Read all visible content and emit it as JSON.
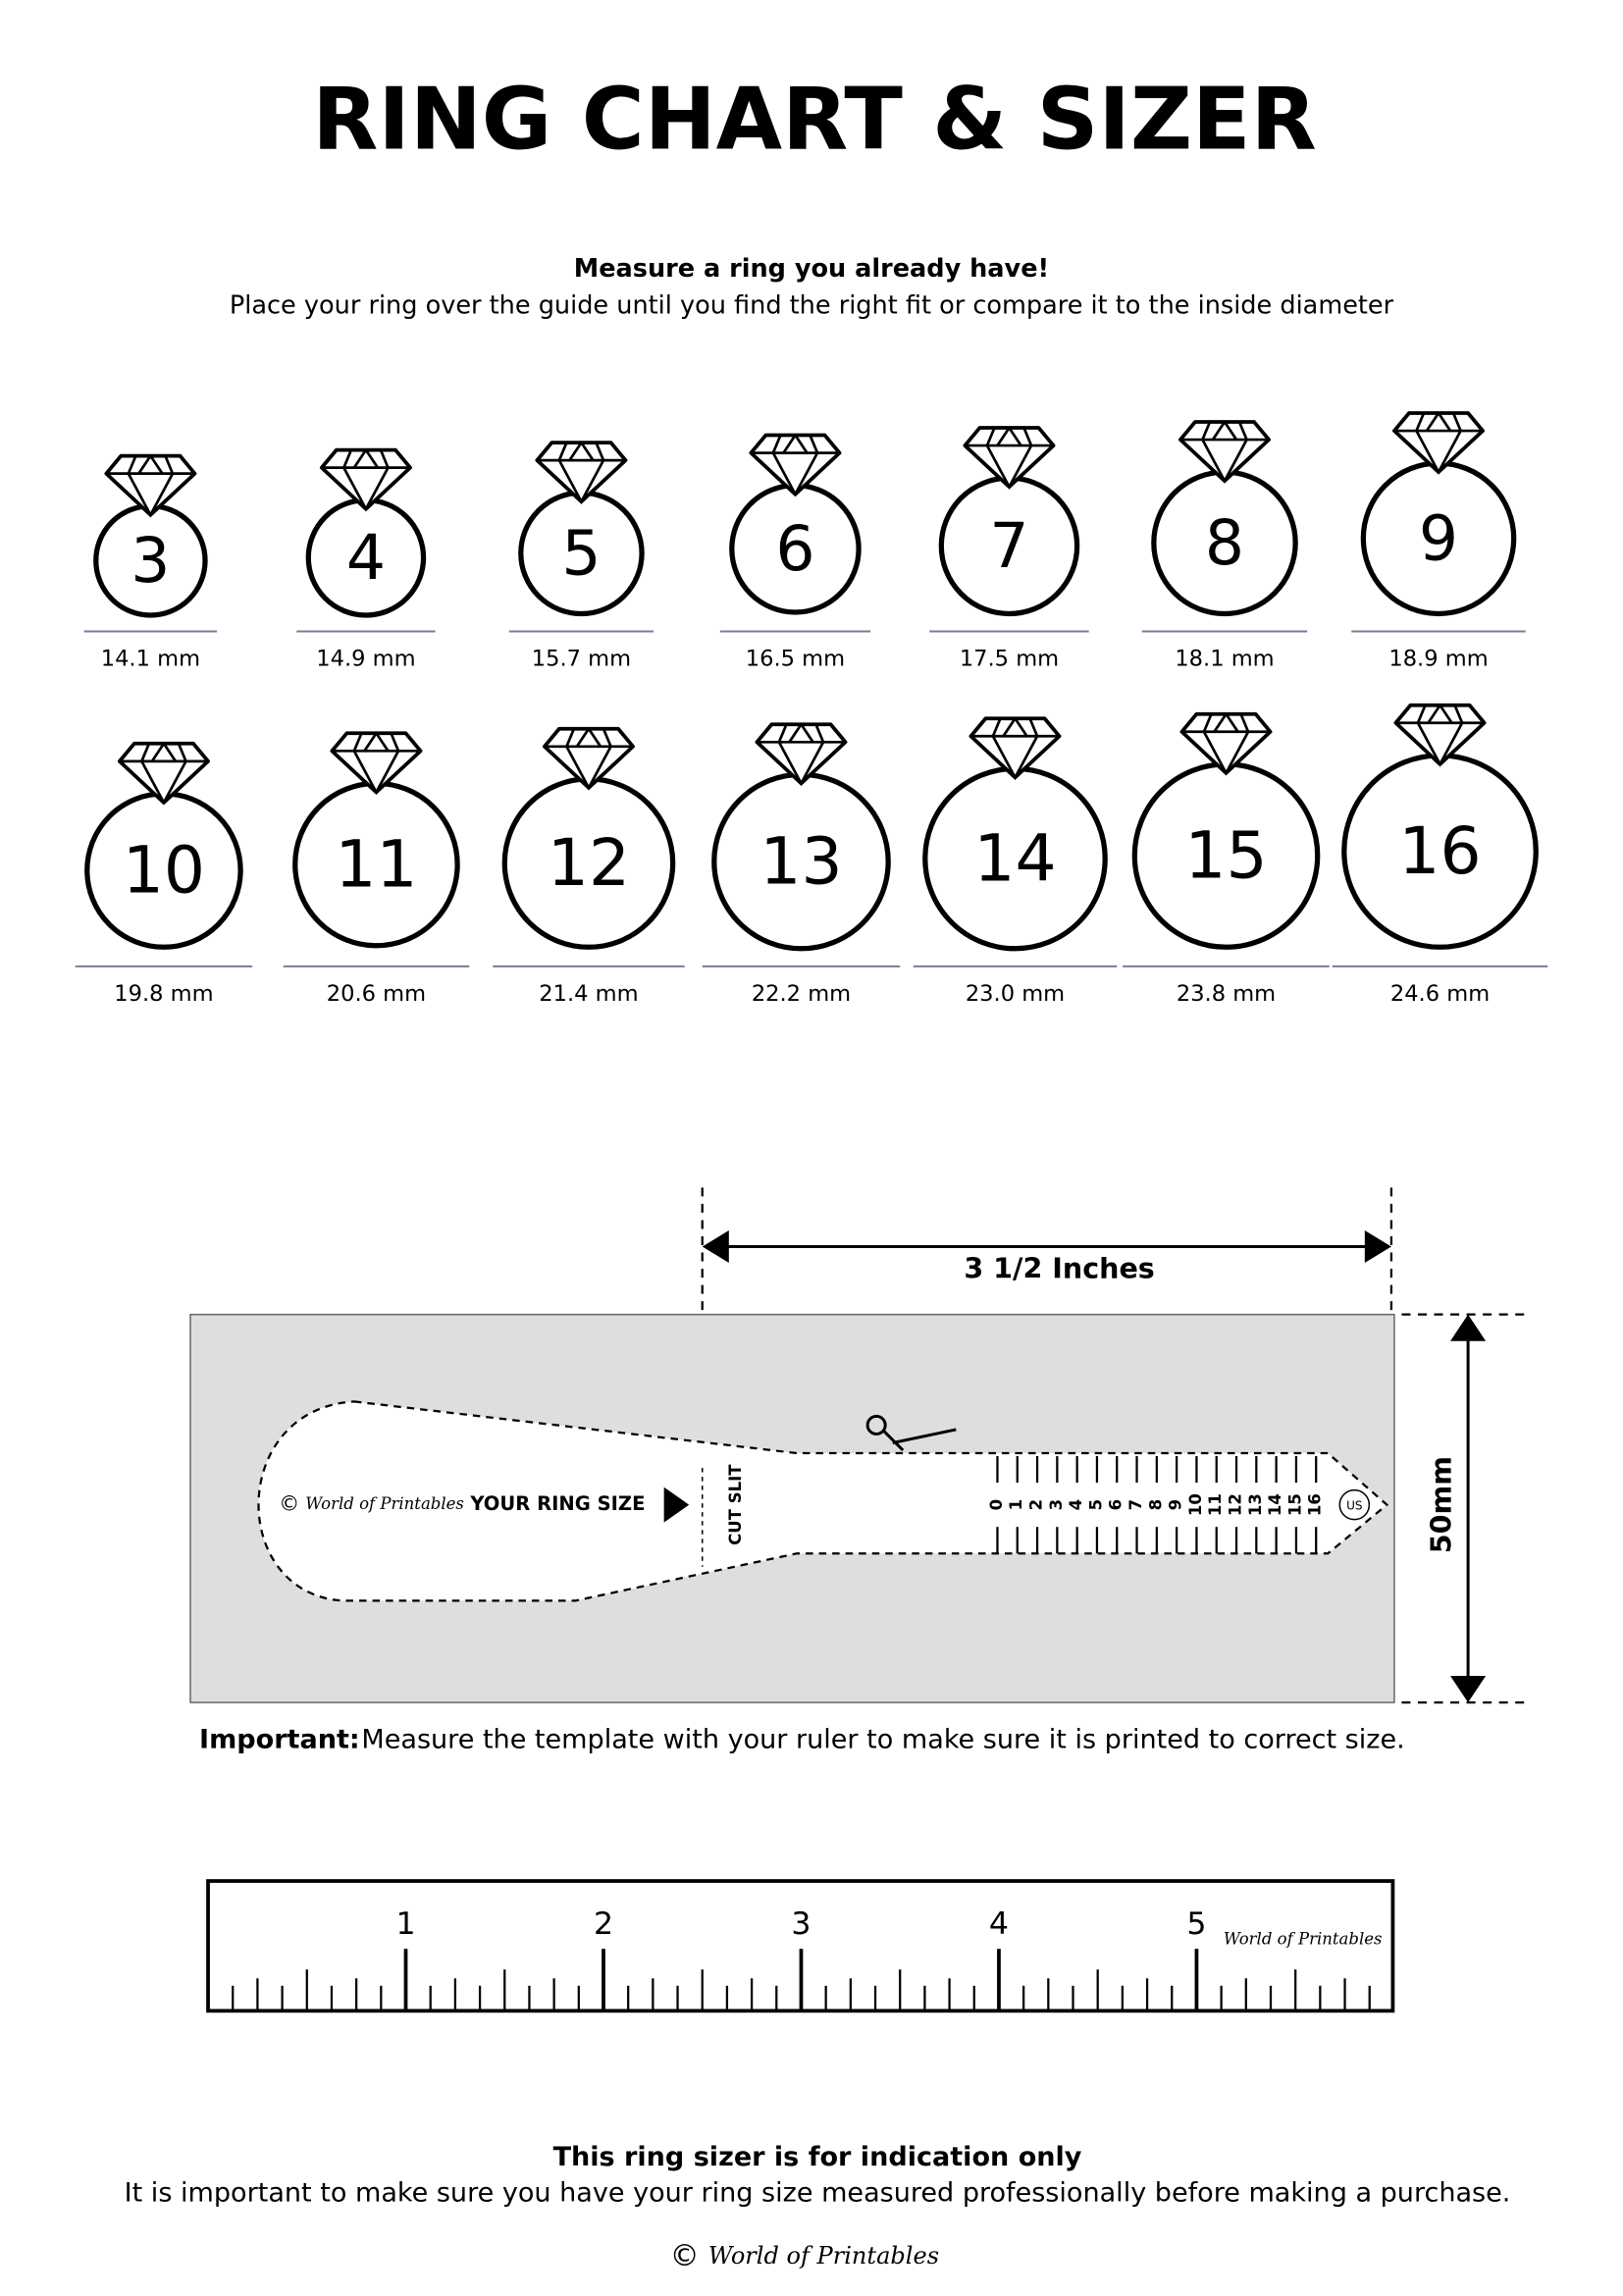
{
  "title": "RING CHART & SIZER",
  "intro": {
    "heading": "Measure a ring you already have!",
    "text": "Place your ring over the guide until you find the right fit or compare it to the inside diameter"
  },
  "rings": [
    {
      "size": 3,
      "diameter": "14.1 mm"
    },
    {
      "size": 4,
      "diameter": "14.9 mm"
    },
    {
      "size": 5,
      "diameter": "15.7 mm"
    },
    {
      "size": 6,
      "diameter": "16.5 mm"
    },
    {
      "size": 7,
      "diameter": "17.5 mm"
    },
    {
      "size": 8,
      "diameter": "18.1 mm"
    },
    {
      "size": 9,
      "diameter": "18.9 mm"
    },
    {
      "size": 10,
      "diameter": "19.8 mm"
    },
    {
      "size": 11,
      "diameter": "20.6 mm"
    },
    {
      "size": 12,
      "diameter": "21.4 mm"
    },
    {
      "size": 13,
      "diameter": "22.2 mm"
    },
    {
      "size": 14,
      "diameter": "23.0 mm"
    },
    {
      "size": 15,
      "diameter": "23.8 mm"
    },
    {
      "size": 16,
      "diameter": "24.6 mm"
    }
  ],
  "sizer": {
    "width_label": "3 1/2 Inches",
    "height_label": "50mm",
    "brand_mark": "©",
    "brand": "World of Printables",
    "your_ring_size": "YOUR RING SIZE",
    "cut_slit": "CUT SLIT",
    "scale": [
      0,
      1,
      2,
      3,
      4,
      5,
      6,
      7,
      8,
      9,
      10,
      11,
      12,
      13,
      14,
      15,
      16
    ],
    "unit": "US"
  },
  "important": {
    "label": "Important:",
    "text": "Measure the template with your ruler to make sure it is printed to correct size."
  },
  "ruler": {
    "numbers": [
      1,
      2,
      3,
      4,
      5
    ],
    "brand": "World of Printables"
  },
  "footer": {
    "heading": "This ring sizer is for indication only",
    "text": "It is important to make sure you have your ring size measured professionally before making a purchase.",
    "brand_mark": "©",
    "brand": "World of Printables"
  }
}
